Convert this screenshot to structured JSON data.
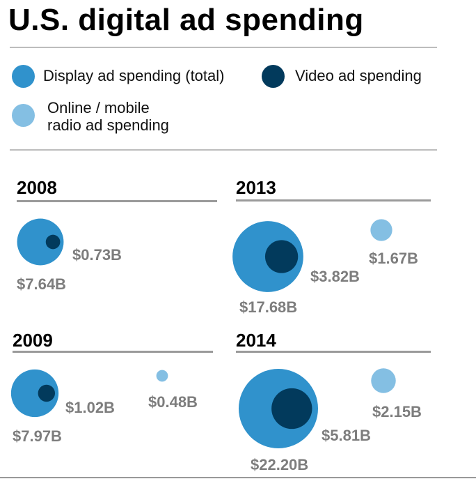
{
  "chart_data": {
    "type": "bubble",
    "title": "U.S. digital ad spending",
    "unit": "USD billions",
    "legend": {
      "display": "Display ad spending (total)",
      "video": "Video ad spending",
      "radio_line1": "Online / mobile",
      "radio_line2": "radio ad spending"
    },
    "colors": {
      "display": "#3092cc",
      "video": "#023a5c",
      "radio": "#84bfe3"
    },
    "panels": [
      {
        "year": "2008",
        "display": 7.64,
        "display_label": "$7.64B",
        "video": 0.73,
        "video_label": "$0.73B",
        "radio": null,
        "radio_label": null
      },
      {
        "year": "2013",
        "display": 17.68,
        "display_label": "$17.68B",
        "video": 3.82,
        "video_label": "$3.82B",
        "radio": 1.67,
        "radio_label": "$1.67B"
      },
      {
        "year": "2009",
        "display": 7.97,
        "display_label": "$7.97B",
        "video": 1.02,
        "video_label": "$1.02B",
        "radio": 0.48,
        "radio_label": "$0.48B"
      },
      {
        "year": "2014",
        "display": 22.2,
        "display_label": "$22.20B",
        "video": 5.81,
        "video_label": "$5.81B",
        "radio": 2.15,
        "radio_label": "$2.15B"
      }
    ]
  }
}
